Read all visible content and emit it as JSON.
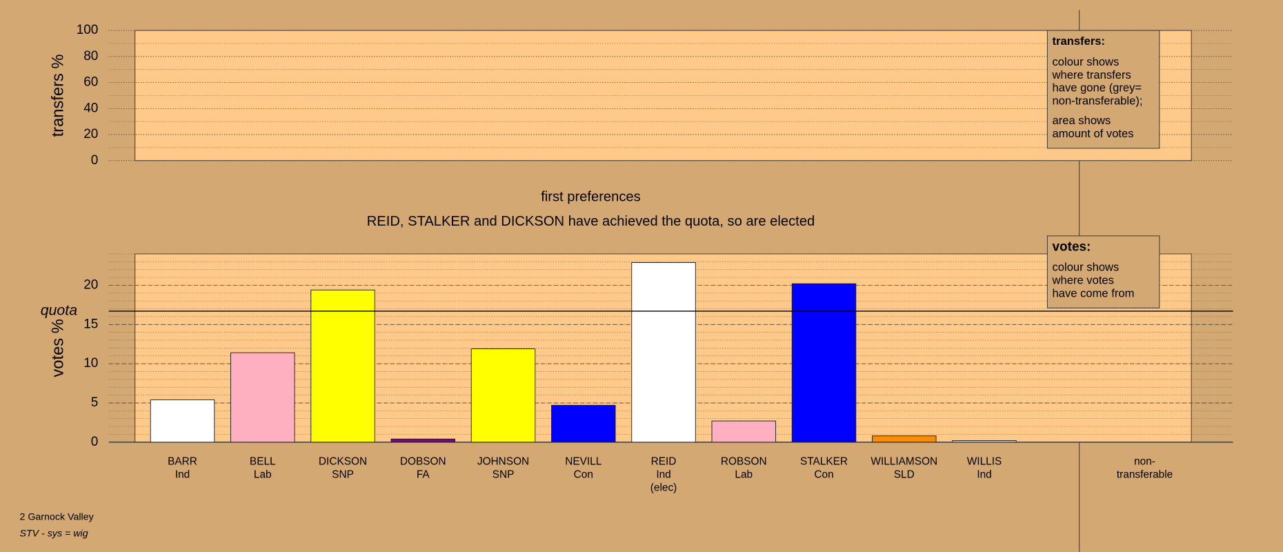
{
  "chart_data": [
    {
      "type": "area",
      "ylabel": "transfers %",
      "ylim": [
        0,
        100
      ],
      "yticks": [
        0,
        20,
        40,
        60,
        80,
        100
      ],
      "minor_grid": 10,
      "grid": true,
      "legend": {
        "title": "transfers:",
        "paragraphs": [
          [
            "colour shows",
            "where transfers",
            "have gone (grey=",
            "non-transferable);"
          ],
          [
            "area shows",
            "amount of votes"
          ]
        ]
      }
    },
    {
      "type": "bar",
      "title": "first preferences",
      "subtitle": "REID, STALKER and DICKSON have achieved the quota, so are elected",
      "ylabel": "votes %",
      "ylim": [
        0,
        24
      ],
      "yticks": [
        0,
        5,
        10,
        15,
        20
      ],
      "minor_grid": 1,
      "grid": true,
      "categories": [
        [
          "BARR",
          "Ind"
        ],
        [
          "BELL",
          "Lab"
        ],
        [
          "DICKSON",
          "SNP"
        ],
        [
          "DOBSON",
          "FA"
        ],
        [
          "JOHNSON",
          "SNP"
        ],
        [
          "NEVILL",
          "Con"
        ],
        [
          "REID",
          "Ind",
          "(elec)"
        ],
        [
          "ROBSON",
          "Lab"
        ],
        [
          "STALKER",
          "Con"
        ],
        [
          "WILLIAMSON",
          "SLD"
        ],
        [
          "WILLIS",
          "Ind"
        ],
        null,
        [
          "non-",
          "transferable"
        ]
      ],
      "values": [
        5.4,
        11.4,
        19.4,
        0.4,
        11.9,
        4.7,
        22.9,
        2.7,
        20.2,
        0.8,
        0.2,
        null,
        null
      ],
      "colors": [
        "#ffffff",
        "#ffb0c0",
        "#ffff00",
        "#800080",
        "#ffff00",
        "#0000ff",
        "#ffffff",
        "#ffb0c0",
        "#0000ff",
        "#ff8c00",
        "#d0d0d0",
        null,
        null
      ],
      "quota": {
        "label": "quota",
        "value": 16.7
      },
      "legend": {
        "title": "votes:",
        "paragraphs": [
          [
            "colour shows",
            "where votes",
            "have come from"
          ]
        ]
      }
    }
  ],
  "footer": {
    "area": "2 Garnock Valley",
    "system": "STV - sys = wig"
  }
}
